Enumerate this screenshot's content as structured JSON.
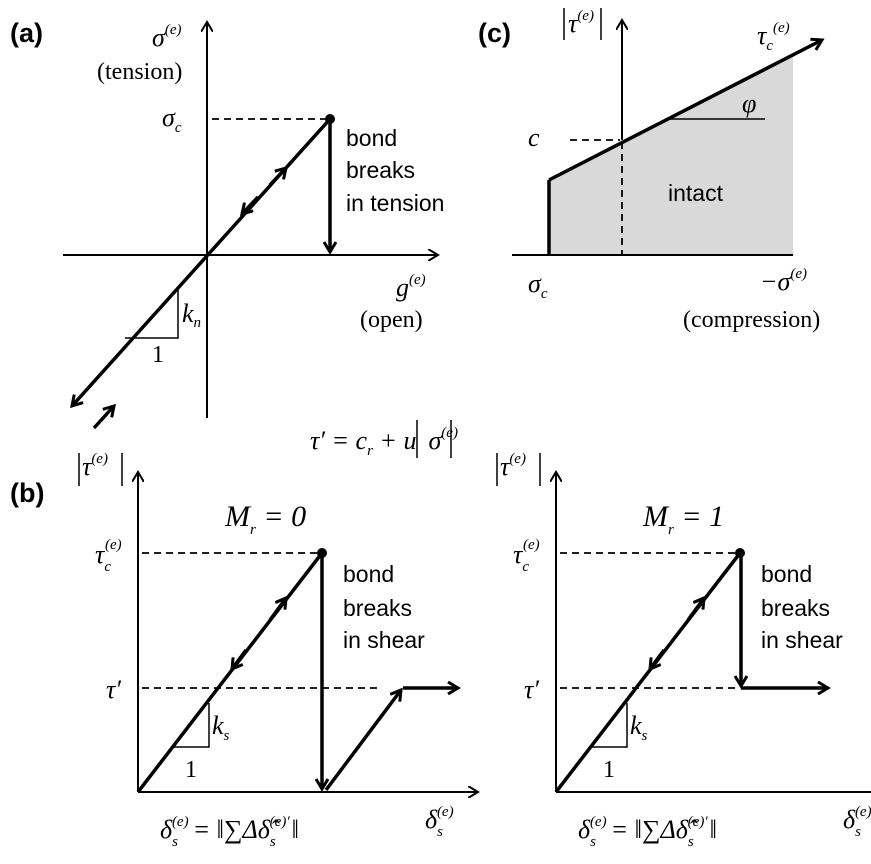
{
  "colors": {
    "ink": "#000000",
    "intact_fill": "#d9d9d9"
  },
  "panel_a": {
    "label": "(a)",
    "y_axis": "σ",
    "y_axis_sup": "(e)",
    "y_axis_note": "(tension)",
    "x_axis": "g",
    "x_axis_sup": "(e)",
    "x_axis_note": "(open)",
    "peak": "σ",
    "peak_sub": "c",
    "break_text": [
      "bond",
      "breaks",
      "in tension"
    ],
    "slope": "k",
    "slope_sub": "n",
    "run": "1"
  },
  "formula": {
    "lhs": "τ′ = c",
    "sub": "r",
    "rest": " + u",
    "abs": "σ",
    "sup": "(e)"
  },
  "panel_c": {
    "label": "(c)",
    "y_axis": "τ",
    "y_axis_sup": "(e)",
    "line_label": "τ",
    "line_label_sub": "c",
    "line_label_sup": "(e)",
    "angle": "φ",
    "cohesion": "c",
    "region": "intact",
    "x_left": "σ",
    "x_left_sub": "c",
    "x_axis": "−σ",
    "x_axis_sup": "(e)",
    "x_axis_note": "(compression)"
  },
  "panel_b": {
    "label": "(b)",
    "plots": [
      {
        "title": "M",
        "title_sub": "r",
        "title_val": " = 0",
        "y_axis": "τ",
        "y_axis_sup": "(e)",
        "peak": "τ",
        "peak_sub": "c",
        "peak_sup": "(e)",
        "residual": "τ′",
        "break_text": [
          "bond",
          "breaks",
          "in shear"
        ],
        "slope": "k",
        "slope_sub": "s",
        "run": "1",
        "x_formula": "δ",
        "x_formula_sub": "s",
        "x_formula_sup": "(e)",
        "x_formula_rhs": "= ‖∑Δδ̂",
        "x_formula_rhs_sub": "s",
        "x_formula_rhs_sup": "(e)′",
        "x_formula_end": "‖",
        "x_axis": "δ",
        "x_axis_sub": "s",
        "x_axis_sup": "(e)"
      },
      {
        "title": "M",
        "title_sub": "r",
        "title_val": " = 1",
        "y_axis": "τ",
        "y_axis_sup": "(e)",
        "peak": "τ",
        "peak_sub": "c",
        "peak_sup": "(e)",
        "residual": "τ′",
        "break_text": [
          "bond",
          "breaks",
          "in shear"
        ],
        "slope": "k",
        "slope_sub": "s",
        "run": "1",
        "x_formula": "δ",
        "x_formula_sub": "s",
        "x_formula_sup": "(e)",
        "x_formula_rhs": "= ‖∑Δδ̂",
        "x_formula_rhs_sub": "s",
        "x_formula_rhs_sup": "(e)′",
        "x_formula_end": "‖",
        "x_axis": "δ",
        "x_axis_sub": "s",
        "x_axis_sup": "(e)"
      }
    ]
  }
}
